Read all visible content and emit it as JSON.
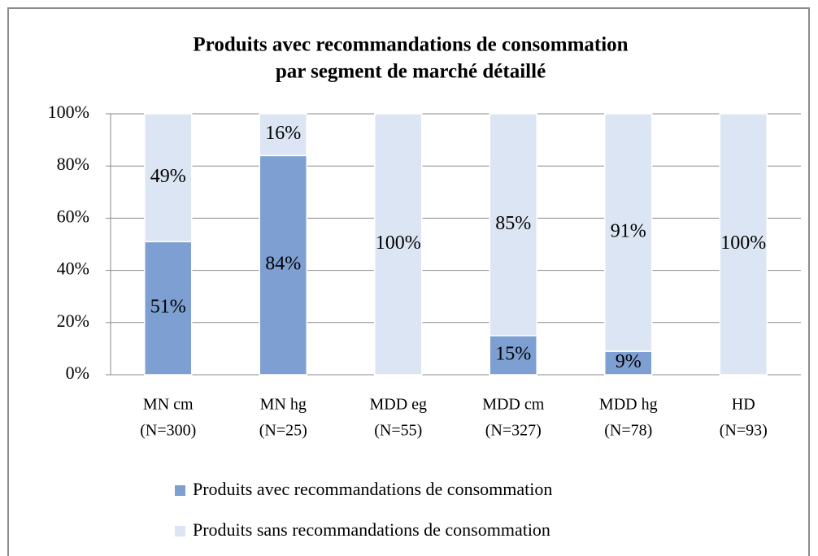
{
  "chart_data": {
    "type": "stacked_bar",
    "title": [
      "Produits avec recommandations de consommation",
      "par segment de marché détaillé"
    ],
    "categories": [
      [
        "MN cm",
        "(N=300)"
      ],
      [
        "MN hg",
        "(N=25)"
      ],
      [
        "MDD eg",
        "(N=55)"
      ],
      [
        "MDD cm",
        "(N=327)"
      ],
      [
        "MDD hg",
        "(N=78)"
      ],
      [
        "HD",
        "(N=93)"
      ]
    ],
    "series": [
      {
        "name": "Produits avec recommandations de consommation",
        "color": "#7d9fd1",
        "values": [
          51,
          84,
          0,
          15,
          9,
          0
        ],
        "value_labels": [
          "51%",
          "84%",
          null,
          "15%",
          "9%",
          null
        ]
      },
      {
        "name": "Produits sans recommandations de consommation",
        "color": "#dbe5f3",
        "values": [
          49,
          16,
          100,
          85,
          91,
          100
        ],
        "value_labels": [
          "49%",
          "16%",
          "100%",
          "85%",
          "91%",
          "100%"
        ]
      }
    ],
    "ylim": [
      0,
      100
    ],
    "yticks": [
      {
        "value": 0,
        "label": "0%"
      },
      {
        "value": 20,
        "label": "20%"
      },
      {
        "value": 40,
        "label": "40%"
      },
      {
        "value": 60,
        "label": "60%"
      },
      {
        "value": 80,
        "label": "80%"
      },
      {
        "value": 100,
        "label": "100%"
      }
    ],
    "grid": true,
    "legend": "bottom"
  }
}
